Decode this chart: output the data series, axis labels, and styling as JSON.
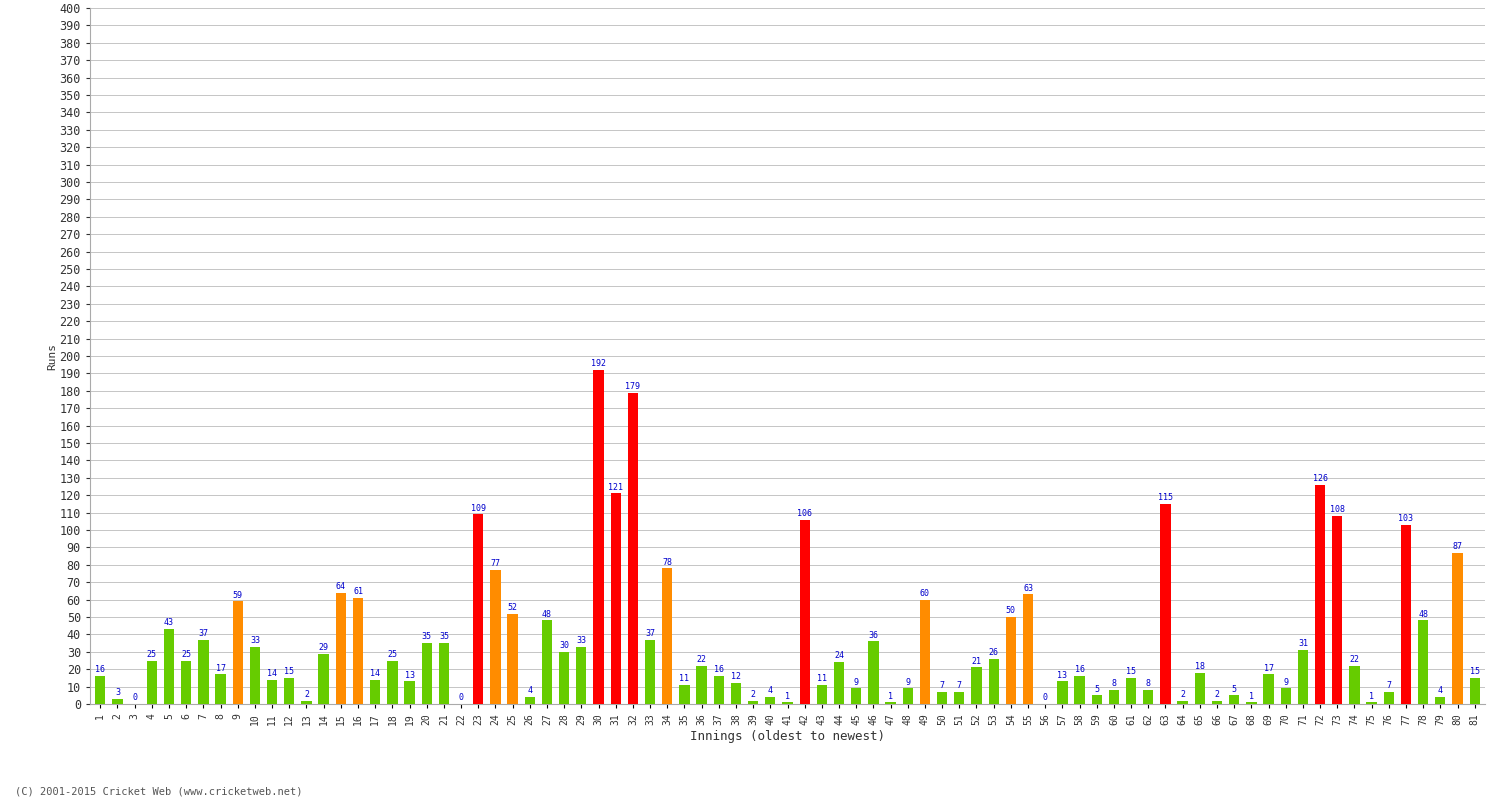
{
  "xlabel": "Innings (oldest to newest)",
  "ylabel": "Runs",
  "ylim": [
    0,
    400
  ],
  "background_color": "#ffffff",
  "grid_color": "#bbbbbb",
  "innings": [
    1,
    2,
    3,
    4,
    5,
    6,
    7,
    8,
    9,
    10,
    11,
    12,
    13,
    14,
    15,
    16,
    17,
    18,
    19,
    20,
    21,
    22,
    23,
    24,
    25,
    26,
    27,
    28,
    29,
    30,
    31,
    32,
    33,
    34,
    35,
    36,
    37,
    38,
    39,
    40,
    41,
    42,
    43,
    44,
    45,
    46,
    47,
    48,
    49,
    50,
    51,
    52,
    53,
    54,
    55,
    56,
    57,
    58,
    59,
    60,
    61,
    62,
    63,
    64,
    65,
    66,
    67,
    68,
    69,
    70,
    71,
    72,
    73,
    74,
    75,
    76,
    77,
    78,
    79,
    80,
    81
  ],
  "scores": [
    16,
    3,
    0,
    25,
    43,
    25,
    37,
    17,
    59,
    33,
    14,
    15,
    2,
    29,
    64,
    61,
    14,
    25,
    13,
    35,
    35,
    0,
    109,
    77,
    52,
    4,
    48,
    30,
    33,
    192,
    121,
    179,
    37,
    78,
    11,
    22,
    16,
    12,
    2,
    4,
    1,
    106,
    11,
    24,
    9,
    36,
    1,
    9,
    60,
    7,
    7,
    21,
    26,
    50,
    63,
    0,
    13,
    16,
    5,
    8,
    15,
    8,
    115,
    2,
    18,
    2,
    5,
    1,
    17,
    9,
    31,
    126,
    108,
    22,
    1,
    7,
    103,
    48,
    4,
    87,
    15
  ],
  "colors": [
    "#66cc00",
    "#66cc00",
    "#66cc00",
    "#66cc00",
    "#66cc00",
    "#66cc00",
    "#66cc00",
    "#66cc00",
    "#ff8c00",
    "#66cc00",
    "#66cc00",
    "#66cc00",
    "#66cc00",
    "#66cc00",
    "#ff8c00",
    "#ff8c00",
    "#66cc00",
    "#66cc00",
    "#66cc00",
    "#66cc00",
    "#66cc00",
    "#66cc00",
    "#ff0000",
    "#ff8c00",
    "#ff8c00",
    "#66cc00",
    "#66cc00",
    "#66cc00",
    "#66cc00",
    "#ff0000",
    "#ff0000",
    "#ff0000",
    "#66cc00",
    "#ff8c00",
    "#66cc00",
    "#66cc00",
    "#66cc00",
    "#66cc00",
    "#66cc00",
    "#66cc00",
    "#66cc00",
    "#ff0000",
    "#66cc00",
    "#66cc00",
    "#66cc00",
    "#66cc00",
    "#66cc00",
    "#66cc00",
    "#ff8c00",
    "#66cc00",
    "#66cc00",
    "#66cc00",
    "#66cc00",
    "#ff8c00",
    "#ff8c00",
    "#66cc00",
    "#66cc00",
    "#66cc00",
    "#66cc00",
    "#66cc00",
    "#66cc00",
    "#66cc00",
    "#ff0000",
    "#66cc00",
    "#66cc00",
    "#66cc00",
    "#66cc00",
    "#66cc00",
    "#66cc00",
    "#66cc00",
    "#66cc00",
    "#ff0000",
    "#ff0000",
    "#66cc00",
    "#66cc00",
    "#66cc00",
    "#ff0000",
    "#66cc00",
    "#66cc00",
    "#ff8c00",
    "#66cc00"
  ],
  "label_color": "#0000cc",
  "bar_width": 0.6,
  "label_fontsize": 6.0,
  "xtick_fontsize": 7.0,
  "ytick_fontsize": 8.5,
  "xlabel_fontsize": 9,
  "ylabel_fontsize": 8,
  "footnote": "(C) 2001-2015 Cricket Web (www.cricketweb.net)"
}
